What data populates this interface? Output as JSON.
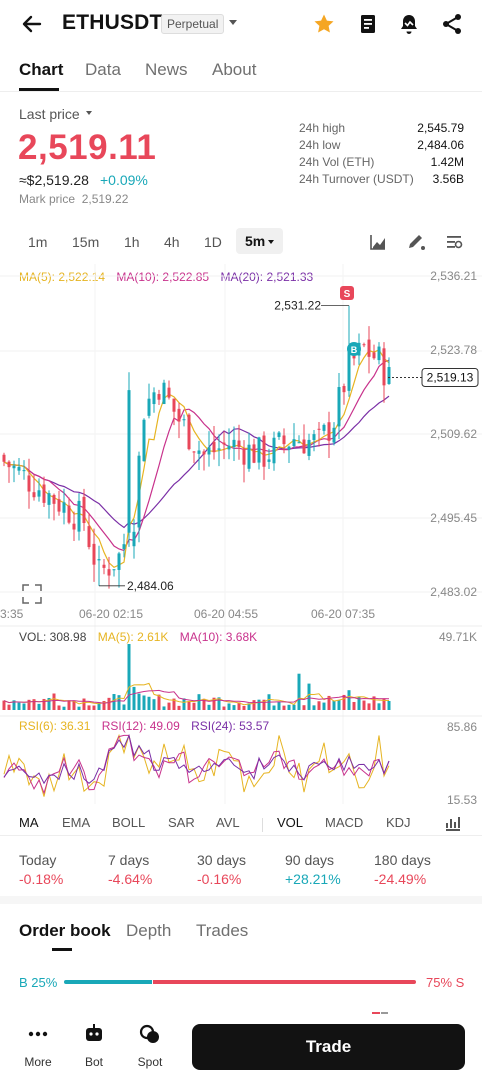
{
  "header": {
    "symbol": "ETHUSDT",
    "contract_type": "Perpetual"
  },
  "tabs": [
    "Chart",
    "Data",
    "News",
    "About"
  ],
  "price": {
    "label": "Last price",
    "last": "2,519.11",
    "approx_usd": "≈$2,519.28",
    "change": "+0.09%",
    "mark_label": "Mark price",
    "mark_value": "2,519.22"
  },
  "stats": [
    {
      "label": "24h high",
      "value": "2,545.79"
    },
    {
      "label": "24h low",
      "value": "2,484.06"
    },
    {
      "label": "24h Vol (ETH)",
      "value": "1.42M"
    },
    {
      "label": "24h Turnover (USDT)",
      "value": "3.56B"
    }
  ],
  "intervals": [
    "1m",
    "15m",
    "1h",
    "4h",
    "1D",
    "5m"
  ],
  "chart": {
    "ma_legend": {
      "ma5": "MA(5): 2,522.14",
      "ma10": "MA(10): 2,522.85",
      "ma20": "MA(20): 2,521.33"
    },
    "y_ticks": [
      "2,536.21",
      "2,523.78",
      "2,509.62",
      "2,495.45",
      "2,483.02"
    ],
    "x_ticks": [
      "3:35",
      "06-20 02:15",
      "06-20 04:55",
      "06-20 07:35"
    ],
    "high_label": "2,531.22",
    "low_label": "2,484.06",
    "current_price_tag": "2,519.13",
    "sell_marker": "S",
    "buy_marker": "B",
    "vol_legend": {
      "vol": "VOL: 308.98",
      "ma5": "MA(5): 2.61K",
      "ma10": "MA(10): 3.68K"
    },
    "vol_max": "49.71K",
    "rsi_legend": {
      "rsi6": "RSI(6): 36.31",
      "rsi12": "RSI(12): 49.09",
      "rsi24": "RSI(24): 53.57"
    },
    "rsi_high": "85.86",
    "rsi_low": "15.53",
    "colors": {
      "up": "#19a8b8",
      "down": "#e8475a",
      "ma5": "#e6b422",
      "ma10": "#c8328c",
      "ma20": "#7a2fa6"
    }
  },
  "chart_data": {
    "type": "candlestick",
    "interval": "5m",
    "ylim": [
      2483.02,
      2536.21
    ],
    "high_marker": 2531.22,
    "low_marker": 2484.06,
    "last": 2519.13
  },
  "indicators": [
    "MA",
    "EMA",
    "BOLL",
    "SAR",
    "AVL",
    "VOL",
    "MACD",
    "KDJ"
  ],
  "performance": [
    {
      "period": "Today",
      "value": "-0.18%",
      "dir": "down"
    },
    {
      "period": "7 days",
      "value": "-4.64%",
      "dir": "down"
    },
    {
      "period": "30 days",
      "value": "-0.16%",
      "dir": "down"
    },
    {
      "period": "90 days",
      "value": "+28.21%",
      "dir": "up"
    },
    {
      "period": "180 days",
      "value": "-24.49%",
      "dir": "down"
    }
  ],
  "orderbook": {
    "tabs": [
      "Order book",
      "Depth",
      "Trades"
    ],
    "buy_ratio_label": "B 25%",
    "sell_ratio_label": "75% S",
    "buy_ratio": 0.25
  },
  "bottom_nav": {
    "more": "More",
    "bot": "Bot",
    "spot": "Spot",
    "trade": "Trade"
  }
}
